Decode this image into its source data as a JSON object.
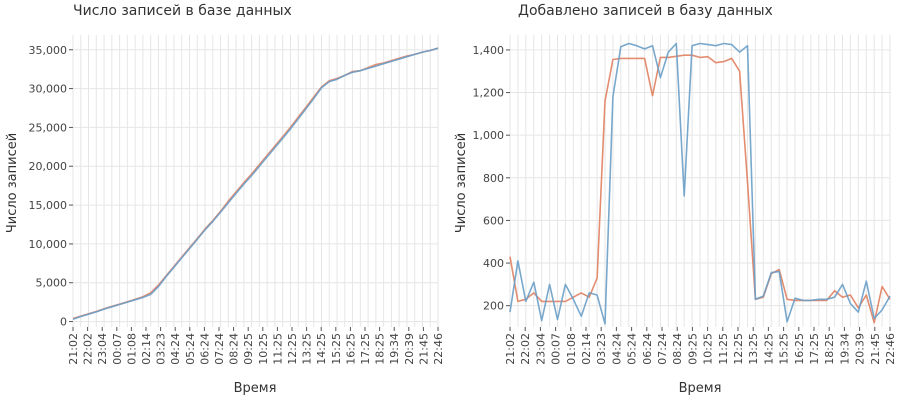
{
  "chart_data": [
    {
      "type": "line",
      "title": "Число записей в базе данных",
      "xlabel": "Время",
      "ylabel": "Число записей",
      "x_tick_labels": [
        "21:02",
        "22:02",
        "23:04",
        "00:07",
        "01:08",
        "02:14",
        "03:23",
        "04:24",
        "05:24",
        "06:24",
        "07:24",
        "08:24",
        "09:25",
        "10:25",
        "11:25",
        "12:25",
        "13:25",
        "14:25",
        "15:25",
        "16:25",
        "17:25",
        "18:25",
        "19:34",
        "20:39",
        "21:45",
        "22:46"
      ],
      "y_ticks": [
        0,
        5000,
        10000,
        15000,
        20000,
        25000,
        30000,
        35000
      ],
      "y_tick_labels": [
        "0",
        "5,000",
        "10,000",
        "15,000",
        "20,000",
        "25,000",
        "30,000",
        "35,000"
      ],
      "ylim": [
        -700,
        36900
      ],
      "grid": true,
      "colors": [
        "#e08060",
        "#6a9ec8"
      ],
      "series": [
        {
          "values": [
            400,
            700,
            1000,
            1300,
            1650,
            1950,
            2250,
            2550,
            2850,
            3200,
            3700,
            4700,
            5900,
            7100,
            8300,
            9500,
            10700,
            11900,
            13000,
            14200,
            15500,
            16700,
            17900,
            19000,
            20200,
            21400,
            22600,
            23800,
            25000,
            26300,
            27600,
            28900,
            30200,
            31000,
            31300,
            31700,
            32200,
            32300,
            32700,
            33100,
            33300,
            33600,
            33900,
            34200,
            34400,
            34700,
            34900,
            35200
          ]
        },
        {
          "values": [
            300,
            650,
            950,
            1250,
            1600,
            1900,
            2200,
            2500,
            2800,
            3100,
            3500,
            4500,
            5800,
            7000,
            8200,
            9400,
            10600,
            11800,
            12900,
            14100,
            15300,
            16500,
            17700,
            18800,
            20000,
            21200,
            22400,
            23600,
            24800,
            26100,
            27400,
            28700,
            30100,
            30900,
            31200,
            31700,
            32100,
            32300,
            32600,
            32900,
            33200,
            33500,
            33800,
            34100,
            34400,
            34700,
            34900,
            35200
          ]
        }
      ]
    },
    {
      "type": "line",
      "title": "Добавлено записей в базу данных",
      "xlabel": "Время",
      "ylabel": "Число записей",
      "x_tick_labels": [
        "21:02",
        "22:02",
        "23:04",
        "00:07",
        "01:08",
        "02:14",
        "03:23",
        "04:24",
        "05:24",
        "06:24",
        "07:24",
        "08:24",
        "09:25",
        "10:25",
        "11:25",
        "12:25",
        "13:25",
        "14:25",
        "15:25",
        "16:25",
        "17:25",
        "18:25",
        "19:34",
        "20:39",
        "21:45",
        "22:46"
      ],
      "y_ticks": [
        200,
        400,
        600,
        800,
        1000,
        1200,
        1400
      ],
      "y_tick_labels": [
        "200",
        "400",
        "600",
        "800",
        "1,000",
        "1,200",
        "1,400"
      ],
      "ylim": [
        100,
        1470
      ],
      "grid": true,
      "colors": [
        "#e08060",
        "#6a9ec8"
      ],
      "series": [
        {
          "values": [
            430,
            220,
            230,
            260,
            220,
            220,
            220,
            220,
            240,
            260,
            240,
            330,
            1160,
            1355,
            1360,
            1360,
            1360,
            1360,
            1185,
            1365,
            1365,
            1370,
            1375,
            1375,
            1365,
            1368,
            1340,
            1345,
            1360,
            1300,
            780,
            230,
            240,
            350,
            370,
            230,
            225,
            225,
            225,
            225,
            225,
            270,
            240,
            250,
            190,
            250,
            120,
            290,
            230
          ]
        },
        {
          "values": [
            170,
            410,
            220,
            310,
            130,
            300,
            135,
            300,
            230,
            150,
            260,
            250,
            115,
            1180,
            1415,
            1430,
            1420,
            1405,
            1420,
            1270,
            1390,
            1430,
            715,
            1420,
            1430,
            1425,
            1420,
            1430,
            1425,
            1390,
            1420,
            230,
            245,
            355,
            360,
            125,
            235,
            225,
            225,
            230,
            230,
            240,
            300,
            210,
            170,
            315,
            140,
            180,
            245
          ]
        }
      ]
    }
  ]
}
